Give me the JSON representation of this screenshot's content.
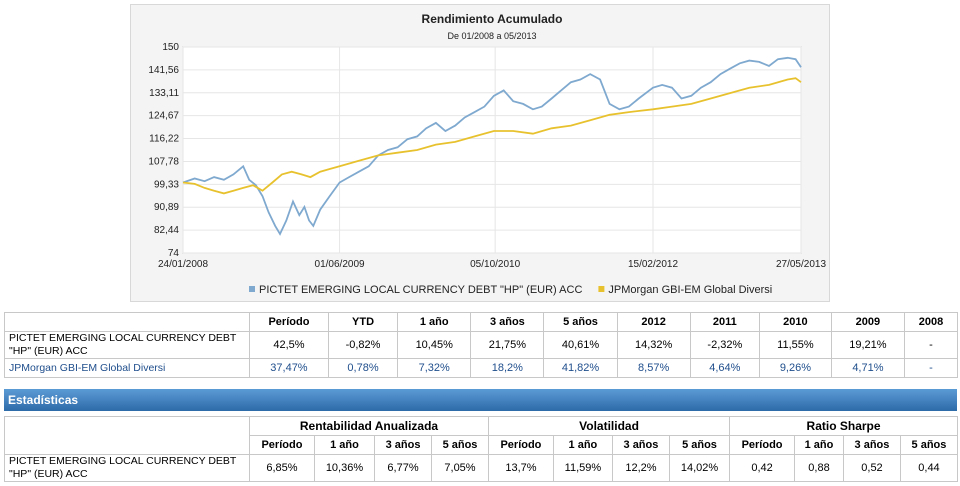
{
  "chart_data": {
    "type": "line",
    "title": "Rendimiento Acumulado",
    "subtitle": "De 01/2008 a 05/2013",
    "ylim": [
      74,
      150
    ],
    "y_ticks": [
      "150",
      "141,56",
      "133,11",
      "124,67",
      "116,22",
      "107,78",
      "99,33",
      "90,89",
      "82,44",
      "74"
    ],
    "y_tick_values": [
      150,
      141.56,
      133.11,
      124.67,
      116.22,
      107.78,
      99.33,
      90.89,
      82.44,
      74
    ],
    "x_ticks": [
      "24/01/2008",
      "01/06/2009",
      "05/10/2010",
      "15/02/2012",
      "27/05/2013"
    ],
    "x_tick_values": [
      "2008-01-24",
      "2009-06-01",
      "2010-10-05",
      "2012-02-15",
      "2013-05-27"
    ],
    "xlim": [
      "2008-01-24",
      "2013-05-27"
    ],
    "grid": true,
    "legend_position": "bottom",
    "series": [
      {
        "name": "PICTET EMERGING LOCAL CURRENCY DEBT \"HP\" (EUR) ACC",
        "color": "#7fa9cf",
        "points": [
          [
            "2008-01-24",
            100.0
          ],
          [
            "2008-03-01",
            101.5
          ],
          [
            "2008-04-01",
            100.5
          ],
          [
            "2008-05-01",
            102.0
          ],
          [
            "2008-06-01",
            101.0
          ],
          [
            "2008-07-01",
            103.0
          ],
          [
            "2008-08-01",
            106.0
          ],
          [
            "2008-08-20",
            101.0
          ],
          [
            "2008-09-10",
            99.0
          ],
          [
            "2008-10-01",
            95.0
          ],
          [
            "2008-10-20",
            89.0
          ],
          [
            "2008-11-10",
            84.0
          ],
          [
            "2008-11-25",
            81.0
          ],
          [
            "2008-12-15",
            86.0
          ],
          [
            "2009-01-05",
            93.0
          ],
          [
            "2009-01-25",
            88.0
          ],
          [
            "2009-02-10",
            91.0
          ],
          [
            "2009-02-25",
            86.0
          ],
          [
            "2009-03-10",
            84.0
          ],
          [
            "2009-04-01",
            90.0
          ],
          [
            "2009-05-01",
            95.0
          ],
          [
            "2009-06-01",
            100.0
          ],
          [
            "2009-07-01",
            102.0
          ],
          [
            "2009-08-01",
            104.0
          ],
          [
            "2009-09-01",
            106.0
          ],
          [
            "2009-10-01",
            110.0
          ],
          [
            "2009-11-01",
            112.0
          ],
          [
            "2009-12-01",
            113.0
          ],
          [
            "2010-01-01",
            116.0
          ],
          [
            "2010-02-01",
            117.0
          ],
          [
            "2010-03-01",
            120.0
          ],
          [
            "2010-04-01",
            122.0
          ],
          [
            "2010-05-01",
            119.0
          ],
          [
            "2010-06-01",
            121.0
          ],
          [
            "2010-07-01",
            124.0
          ],
          [
            "2010-08-01",
            126.0
          ],
          [
            "2010-09-01",
            128.0
          ],
          [
            "2010-10-01",
            132.0
          ],
          [
            "2010-11-01",
            134.0
          ],
          [
            "2010-12-01",
            130.0
          ],
          [
            "2011-01-01",
            129.0
          ],
          [
            "2011-02-01",
            127.0
          ],
          [
            "2011-03-01",
            128.0
          ],
          [
            "2011-04-01",
            131.0
          ],
          [
            "2011-05-01",
            134.0
          ],
          [
            "2011-06-01",
            137.0
          ],
          [
            "2011-07-01",
            138.0
          ],
          [
            "2011-08-01",
            140.0
          ],
          [
            "2011-09-01",
            138.0
          ],
          [
            "2011-10-01",
            129.0
          ],
          [
            "2011-11-01",
            127.0
          ],
          [
            "2011-12-01",
            128.0
          ],
          [
            "2012-01-01",
            131.0
          ],
          [
            "2012-02-15",
            135.0
          ],
          [
            "2012-03-15",
            136.0
          ],
          [
            "2012-04-15",
            135.0
          ],
          [
            "2012-05-15",
            131.0
          ],
          [
            "2012-06-15",
            132.0
          ],
          [
            "2012-07-15",
            135.0
          ],
          [
            "2012-08-15",
            137.0
          ],
          [
            "2012-09-15",
            140.0
          ],
          [
            "2012-10-15",
            142.0
          ],
          [
            "2012-11-15",
            144.0
          ],
          [
            "2012-12-15",
            145.0
          ],
          [
            "2013-01-15",
            144.5
          ],
          [
            "2013-02-15",
            143.0
          ],
          [
            "2013-03-15",
            145.5
          ],
          [
            "2013-04-15",
            146.0
          ],
          [
            "2013-05-10",
            145.5
          ],
          [
            "2013-05-27",
            142.5
          ]
        ]
      },
      {
        "name": "JPMorgan GBI-EM Global Diversi",
        "color": "#e8c22e",
        "points": [
          [
            "2008-01-24",
            100.0
          ],
          [
            "2008-03-01",
            99.5
          ],
          [
            "2008-04-01",
            98.0
          ],
          [
            "2008-05-01",
            97.0
          ],
          [
            "2008-06-01",
            96.0
          ],
          [
            "2008-07-01",
            97.0
          ],
          [
            "2008-08-01",
            98.0
          ],
          [
            "2008-09-01",
            99.0
          ],
          [
            "2008-10-01",
            97.0
          ],
          [
            "2008-11-01",
            100.0
          ],
          [
            "2008-12-01",
            103.0
          ],
          [
            "2009-01-01",
            104.0
          ],
          [
            "2009-02-01",
            103.0
          ],
          [
            "2009-03-01",
            102.0
          ],
          [
            "2009-04-01",
            104.0
          ],
          [
            "2009-05-01",
            105.0
          ],
          [
            "2009-06-01",
            106.0
          ],
          [
            "2009-08-01",
            108.0
          ],
          [
            "2009-10-01",
            110.0
          ],
          [
            "2009-12-01",
            111.0
          ],
          [
            "2010-02-01",
            112.0
          ],
          [
            "2010-04-01",
            114.0
          ],
          [
            "2010-06-01",
            115.0
          ],
          [
            "2010-08-01",
            117.0
          ],
          [
            "2010-10-01",
            119.0
          ],
          [
            "2010-12-01",
            119.0
          ],
          [
            "2011-02-01",
            118.0
          ],
          [
            "2011-04-01",
            120.0
          ],
          [
            "2011-06-01",
            121.0
          ],
          [
            "2011-08-01",
            123.0
          ],
          [
            "2011-10-01",
            125.0
          ],
          [
            "2011-12-01",
            126.0
          ],
          [
            "2012-02-15",
            127.0
          ],
          [
            "2012-04-15",
            128.0
          ],
          [
            "2012-06-15",
            129.0
          ],
          [
            "2012-08-15",
            131.0
          ],
          [
            "2012-10-15",
            133.0
          ],
          [
            "2012-12-15",
            135.0
          ],
          [
            "2013-02-15",
            136.0
          ],
          [
            "2013-04-15",
            138.0
          ],
          [
            "2013-05-10",
            138.5
          ],
          [
            "2013-05-27",
            137.0
          ]
        ]
      }
    ]
  },
  "returns_table": {
    "headers": [
      "Período",
      "YTD",
      "1 año",
      "3 años",
      "5 años",
      "2012",
      "2011",
      "2010",
      "2009",
      "2008"
    ],
    "rows": [
      {
        "name": "PICTET EMERGING LOCAL CURRENCY DEBT \"HP\" (EUR) ACC",
        "values": [
          "42,5%",
          "-0,82%",
          "10,45%",
          "21,75%",
          "40,61%",
          "14,32%",
          "-2,32%",
          "11,55%",
          "19,21%",
          "-"
        ]
      },
      {
        "name": "JPMorgan GBI-EM Global Diversi",
        "values": [
          "37,47%",
          "0,78%",
          "7,32%",
          "18,2%",
          "41,82%",
          "8,57%",
          "4,64%",
          "9,26%",
          "4,71%",
          "-"
        ]
      }
    ]
  },
  "stats": {
    "title": "Estadísticas",
    "groups": [
      "Rentabilidad Anualizada",
      "Volatilidad",
      "Ratio Sharpe"
    ],
    "subheaders": [
      "Período",
      "1 año",
      "3 años",
      "5 años",
      "Período",
      "1 año",
      "3 años",
      "5 años",
      "Período",
      "1 año",
      "3 años",
      "5 años"
    ],
    "row": {
      "name": "PICTET EMERGING LOCAL CURRENCY DEBT \"HP\" (EUR) ACC",
      "values": [
        "6,85%",
        "10,36%",
        "6,77%",
        "7,05%",
        "13,7%",
        "11,59%",
        "12,2%",
        "14,02%",
        "0,42",
        "0,88",
        "0,52",
        "0,44"
      ]
    }
  }
}
